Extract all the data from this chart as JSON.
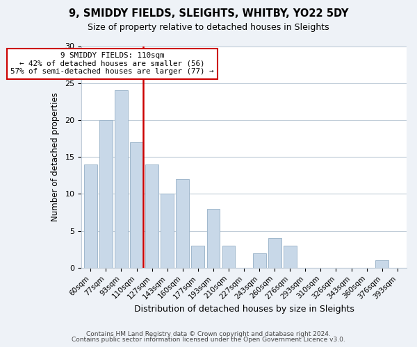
{
  "title": "9, SMIDDY FIELDS, SLEIGHTS, WHITBY, YO22 5DY",
  "subtitle": "Size of property relative to detached houses in Sleights",
  "xlabel": "Distribution of detached houses by size in Sleights",
  "ylabel": "Number of detached properties",
  "bar_color": "#c8d8e8",
  "bar_edge_color": "#a0b8cc",
  "bins": [
    "60sqm",
    "77sqm",
    "93sqm",
    "110sqm",
    "127sqm",
    "143sqm",
    "160sqm",
    "177sqm",
    "193sqm",
    "210sqm",
    "227sqm",
    "243sqm",
    "260sqm",
    "276sqm",
    "293sqm",
    "310sqm",
    "326sqm",
    "343sqm",
    "360sqm",
    "376sqm",
    "393sqm"
  ],
  "values": [
    14,
    20,
    24,
    17,
    14,
    10,
    12,
    3,
    8,
    3,
    0,
    2,
    4,
    3,
    0,
    0,
    0,
    0,
    0,
    1,
    0
  ],
  "highlight_bin_index": 3,
  "highlight_color": "#cc0000",
  "ylim": [
    0,
    30
  ],
  "yticks": [
    0,
    5,
    10,
    15,
    20,
    25,
    30
  ],
  "annotation_title": "9 SMIDDY FIELDS: 110sqm",
  "annotation_line1": "← 42% of detached houses are smaller (56)",
  "annotation_line2": "57% of semi-detached houses are larger (77) →",
  "footer1": "Contains HM Land Registry data © Crown copyright and database right 2024.",
  "footer2": "Contains public sector information licensed under the Open Government Licence v3.0.",
  "background_color": "#eef2f7",
  "plot_bg_color": "#ffffff",
  "grid_color": "#c0ccd8"
}
